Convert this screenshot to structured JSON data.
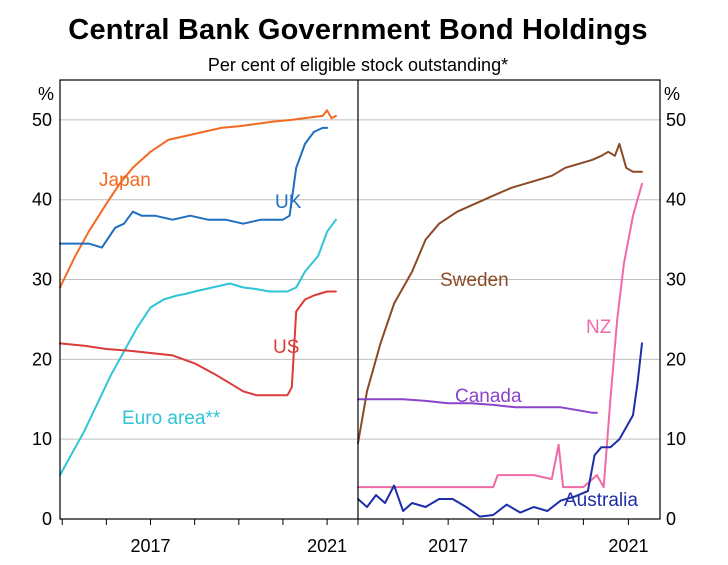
{
  "header": {
    "title": "Central Bank Government Bond Holdings",
    "subtitle": "Per cent of eligible stock outstanding*"
  },
  "chart_data": [
    {
      "type": "line",
      "panel": "left",
      "ylabel": "%",
      "ylim": [
        0,
        55
      ],
      "yticks": [
        "0",
        "10",
        "20",
        "30",
        "40",
        "50"
      ],
      "xlim": [
        2014.95,
        2021.7
      ],
      "xticks": [
        {
          "x": 2017,
          "label": "2017"
        },
        {
          "x": 2021,
          "label": "2021"
        }
      ],
      "grid": true,
      "series": [
        {
          "name": "Japan",
          "color": "#f26a21",
          "x": [
            2014.95,
            2015.3,
            2015.6,
            2016.0,
            2016.3,
            2016.6,
            2017.0,
            2017.4,
            2017.8,
            2018.2,
            2018.6,
            2019.0,
            2019.4,
            2019.8,
            2020.2,
            2020.6,
            2020.9,
            2021.0,
            2021.1,
            2021.2
          ],
          "y": [
            29,
            33,
            36,
            39.5,
            42,
            44,
            46,
            47.5,
            48,
            48.5,
            49,
            49.2,
            49.5,
            49.8,
            50,
            50.3,
            50.5,
            51.2,
            50.2,
            50.5
          ]
        },
        {
          "name": "UK",
          "color": "#1f6fc0",
          "x": [
            2014.95,
            2015.3,
            2015.6,
            2015.9,
            2016.2,
            2016.4,
            2016.6,
            2016.8,
            2017.1,
            2017.5,
            2017.9,
            2018.3,
            2018.7,
            2019.1,
            2019.5,
            2019.8,
            2020.0,
            2020.15,
            2020.3,
            2020.5,
            2020.7,
            2020.9,
            2021.0
          ],
          "y": [
            34.5,
            34.5,
            34.5,
            34.0,
            36.5,
            37.0,
            38.5,
            38.0,
            38.0,
            37.5,
            38.0,
            37.5,
            37.5,
            37.0,
            37.5,
            37.5,
            37.5,
            38.0,
            44.0,
            47.0,
            48.5,
            49.0,
            49.0
          ]
        },
        {
          "name": "Euro area**",
          "color": "#2fc5d6",
          "x": [
            2014.95,
            2015.2,
            2015.5,
            2015.8,
            2016.1,
            2016.4,
            2016.7,
            2017.0,
            2017.3,
            2017.6,
            2017.8,
            2018.0,
            2018.4,
            2018.8,
            2019.1,
            2019.4,
            2019.7,
            2019.9,
            2020.0,
            2020.1,
            2020.3,
            2020.5,
            2020.8,
            2021.0,
            2021.2
          ],
          "y": [
            5.5,
            8,
            11,
            14.5,
            18,
            21,
            24,
            26.5,
            27.5,
            28,
            28.2,
            28.5,
            29,
            29.5,
            29,
            28.8,
            28.5,
            28.5,
            28.5,
            28.5,
            29,
            31,
            33,
            36,
            37.5
          ]
        },
        {
          "name": "US",
          "color": "#dd3a3a",
          "x": [
            2014.95,
            2015.5,
            2016.0,
            2016.5,
            2017.0,
            2017.5,
            2018.0,
            2018.5,
            2018.8,
            2019.1,
            2019.4,
            2019.8,
            2020.1,
            2020.2,
            2020.3,
            2020.5,
            2020.7,
            2021.0,
            2021.2
          ],
          "y": [
            22,
            21.7,
            21.3,
            21.1,
            20.8,
            20.5,
            19.5,
            18,
            17,
            16,
            15.5,
            15.5,
            15.5,
            16.5,
            26,
            27.5,
            28,
            28.5,
            28.5
          ]
        }
      ]
    },
    {
      "type": "line",
      "panel": "right",
      "ylabel": "%",
      "ylim": [
        0,
        55
      ],
      "yticks": [
        "0",
        "10",
        "20",
        "30",
        "40",
        "50"
      ],
      "xlim": [
        2015.0,
        2021.7
      ],
      "xticks": [
        {
          "x": 2017,
          "label": "2017"
        },
        {
          "x": 2021,
          "label": "2021"
        }
      ],
      "grid": true,
      "series": [
        {
          "name": "Sweden",
          "color": "#8b4a26",
          "x": [
            2015.0,
            2015.2,
            2015.5,
            2015.8,
            2016.2,
            2016.5,
            2016.8,
            2017.2,
            2017.6,
            2018.0,
            2018.4,
            2018.7,
            2019.0,
            2019.3,
            2019.6,
            2019.9,
            2020.2,
            2020.4,
            2020.55,
            2020.7,
            2020.8,
            2020.95,
            2021.1,
            2021.3
          ],
          "y": [
            9.5,
            16,
            22,
            27,
            31,
            35,
            37,
            38.5,
            39.5,
            40.5,
            41.5,
            42,
            42.5,
            43,
            44,
            44.5,
            45,
            45.5,
            46,
            45.5,
            47,
            44,
            43.5,
            43.5
          ]
        },
        {
          "name": "NZ",
          "color": "#f06aa8",
          "x": [
            2015.0,
            2015.5,
            2016.0,
            2016.5,
            2017.0,
            2017.5,
            2018.0,
            2018.1,
            2018.5,
            2018.9,
            2019.3,
            2019.45,
            2019.55,
            2020.0,
            2020.3,
            2020.45,
            2020.6,
            2020.75,
            2020.9,
            2021.1,
            2021.2,
            2021.3
          ],
          "y": [
            4.0,
            4.0,
            4.0,
            4.0,
            4.0,
            4.0,
            4.0,
            5.5,
            5.5,
            5.5,
            5.0,
            9.3,
            4.0,
            4.0,
            5.5,
            4.0,
            15,
            25,
            32,
            38,
            40,
            42
          ]
        },
        {
          "name": "Canada",
          "color": "#8a44c8",
          "x": [
            2015.0,
            2015.5,
            2016.0,
            2016.5,
            2017.0,
            2017.5,
            2018.0,
            2018.5,
            2019.0,
            2019.5,
            2020.0,
            2020.2,
            2020.3
          ],
          "y": [
            15,
            15,
            15,
            14.8,
            14.5,
            14.5,
            14.3,
            14,
            14,
            14,
            13.5,
            13.3,
            13.3
          ]
        },
        {
          "name": "Australia",
          "color": "#1c2fa8",
          "x": [
            2015.0,
            2015.2,
            2015.4,
            2015.6,
            2015.8,
            2016.0,
            2016.2,
            2016.5,
            2016.8,
            2017.1,
            2017.4,
            2017.7,
            2018.0,
            2018.3,
            2018.6,
            2018.9,
            2019.2,
            2019.5,
            2019.8,
            2020.1,
            2020.25,
            2020.4,
            2020.6,
            2020.8,
            2020.95,
            2021.1,
            2021.2,
            2021.3
          ],
          "y": [
            2.5,
            1.5,
            3,
            2,
            4.2,
            1,
            2,
            1.5,
            2.5,
            2.5,
            1.5,
            0.3,
            0.5,
            1.8,
            0.8,
            1.5,
            1,
            2.3,
            2.8,
            3.5,
            8,
            9,
            9,
            10,
            11.5,
            13,
            17,
            22
          ]
        }
      ]
    }
  ],
  "labels": {
    "Japan": "Japan",
    "UK": "UK",
    "Euro area**": "Euro area**",
    "US": "US",
    "Sweden": "Sweden",
    "NZ": "NZ",
    "Canada": "Canada",
    "Australia": "Australia"
  }
}
